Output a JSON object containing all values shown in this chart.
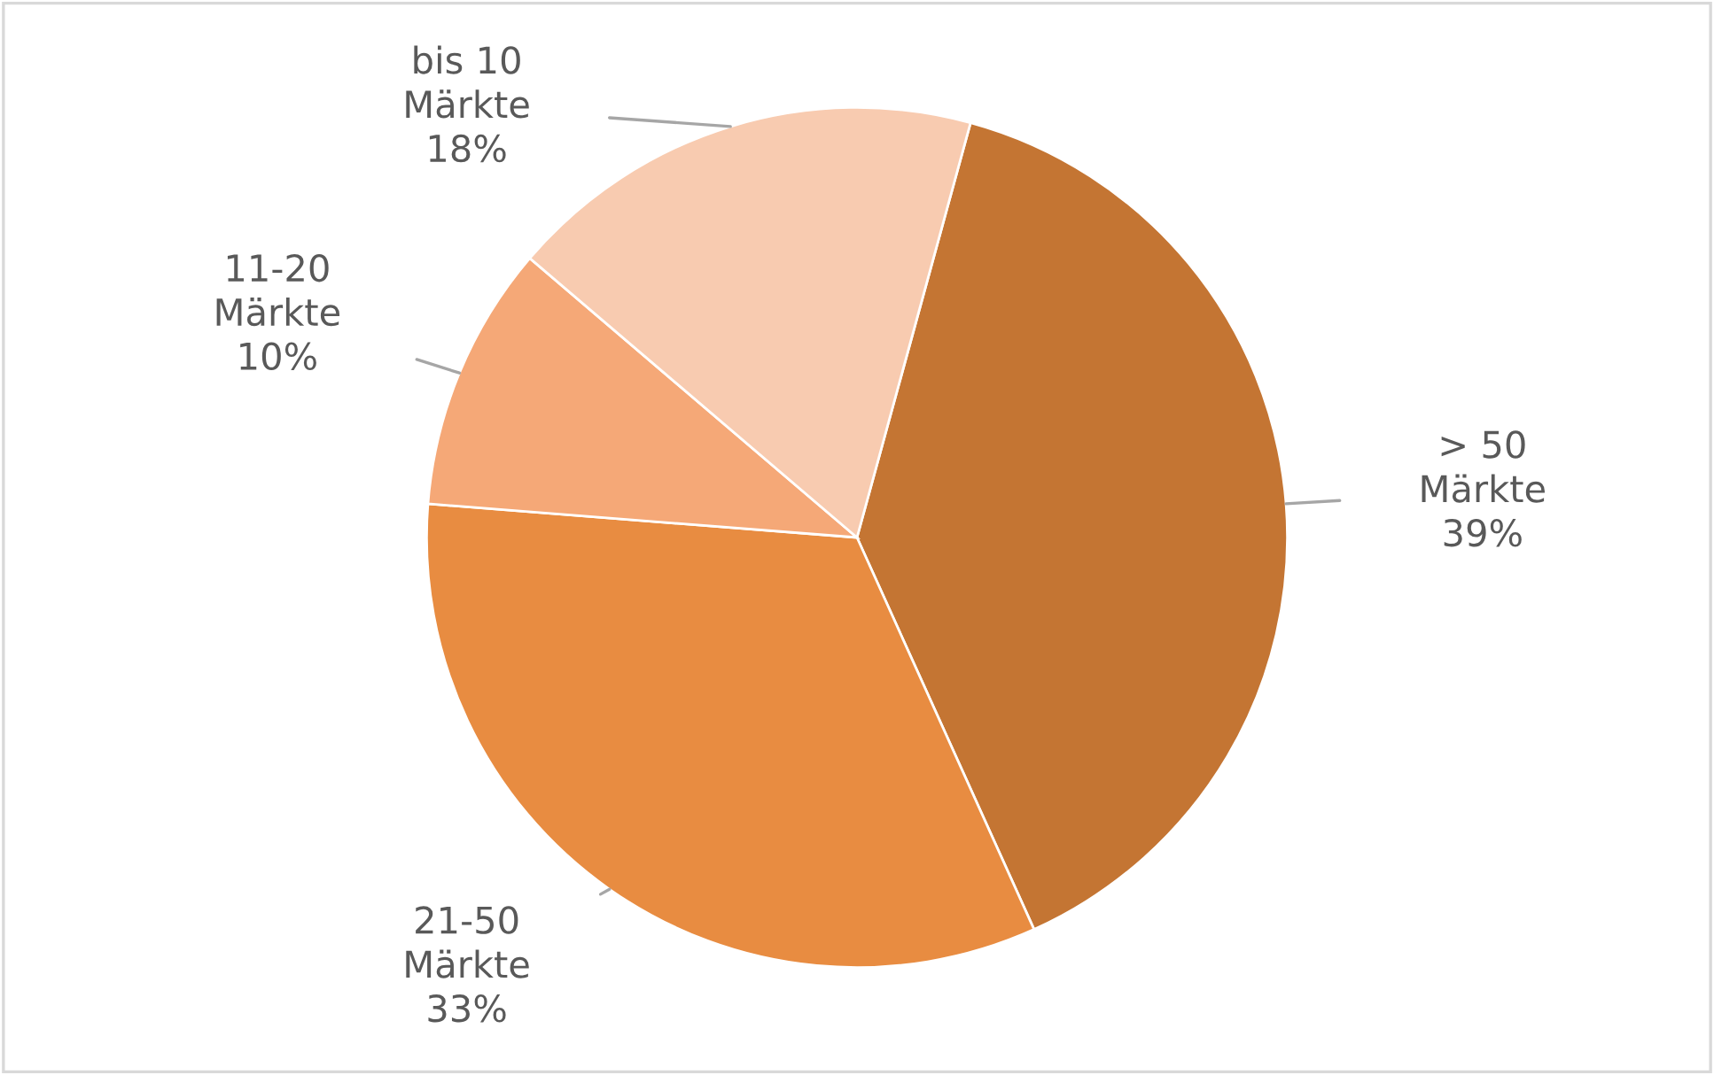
{
  "chart_data": {
    "type": "pie",
    "categories": [
      "> 50 Märkte",
      "21-50 Märkte",
      "11-20 Märkte",
      "bis 10 Märkte"
    ],
    "values": [
      39,
      33,
      10,
      18
    ],
    "colors": [
      "#c47533",
      "#e88c41",
      "#f5a877",
      "#f8cbb0"
    ],
    "value_labels": [
      "39%",
      "33%",
      "10%",
      "18%"
    ],
    "legend": false
  }
}
